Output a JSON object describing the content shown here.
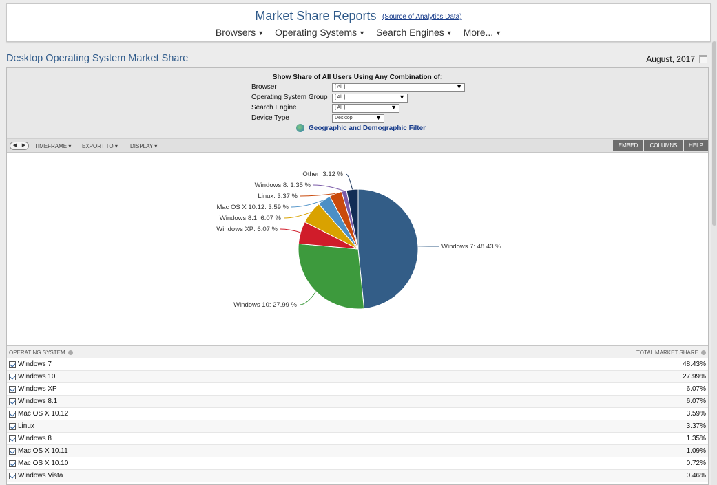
{
  "header": {
    "title": "Market Share Reports",
    "source_link": "(Source of Analytics Data)",
    "nav": [
      "Browsers",
      "Operating Systems",
      "Search Engines",
      "More..."
    ]
  },
  "page": {
    "title": "Desktop Operating System Market Share",
    "date": "August, 2017"
  },
  "filters": {
    "heading": "Show Share of All Users Using Any Combination of:",
    "rows": [
      {
        "label": "Browser",
        "value": "[ All ]"
      },
      {
        "label": "Operating System Group",
        "value": "[ All ]"
      },
      {
        "label": "Search Engine",
        "value": "[ All ]"
      },
      {
        "label": "Device Type",
        "value": "Desktop"
      }
    ],
    "geo_link": "Geographic and Demographic Filter"
  },
  "toolbar": {
    "timeframe": "TIMEFRAME",
    "export_to": "EXPORT TO",
    "display": "DISPLAY",
    "embed": "EMBED",
    "columns": "COLUMNS",
    "help": "HELP"
  },
  "chart_data": {
    "type": "pie",
    "slices": [
      {
        "label": "Windows 7: 48.43 %",
        "value": 48.43,
        "color": "#335d87"
      },
      {
        "label": "Windows 10: 27.99 %",
        "value": 27.99,
        "color": "#3d9a3d"
      },
      {
        "label": "Windows XP: 6.07 %",
        "value": 6.07,
        "color": "#d01c2a"
      },
      {
        "label": "Windows 8.1: 6.07 %",
        "value": 6.07,
        "color": "#d9a200"
      },
      {
        "label": "Mac OS X 10.12: 3.59 %",
        "value": 3.59,
        "color": "#4b8fc6"
      },
      {
        "label": "Linux: 3.37 %",
        "value": 3.37,
        "color": "#c94a0c"
      },
      {
        "label": "Windows 8: 1.35 %",
        "value": 1.35,
        "color": "#7a5aa8"
      },
      {
        "label": "Other: 3.12 %",
        "value": 3.12,
        "color": "#122d55"
      }
    ]
  },
  "table": {
    "col1": "OPERATING SYSTEM",
    "col2": "TOTAL MARKET SHARE",
    "rows": [
      {
        "name": "Windows 7",
        "value": "48.43%"
      },
      {
        "name": "Windows 10",
        "value": "27.99%"
      },
      {
        "name": "Windows XP",
        "value": "6.07%"
      },
      {
        "name": "Windows 8.1",
        "value": "6.07%"
      },
      {
        "name": "Mac OS X 10.12",
        "value": "3.59%"
      },
      {
        "name": "Linux",
        "value": "3.37%"
      },
      {
        "name": "Windows 8",
        "value": "1.35%"
      },
      {
        "name": "Mac OS X 10.11",
        "value": "1.09%"
      },
      {
        "name": "Mac OS X 10.10",
        "value": "0.72%"
      },
      {
        "name": "Windows Vista",
        "value": "0.46%"
      }
    ]
  }
}
